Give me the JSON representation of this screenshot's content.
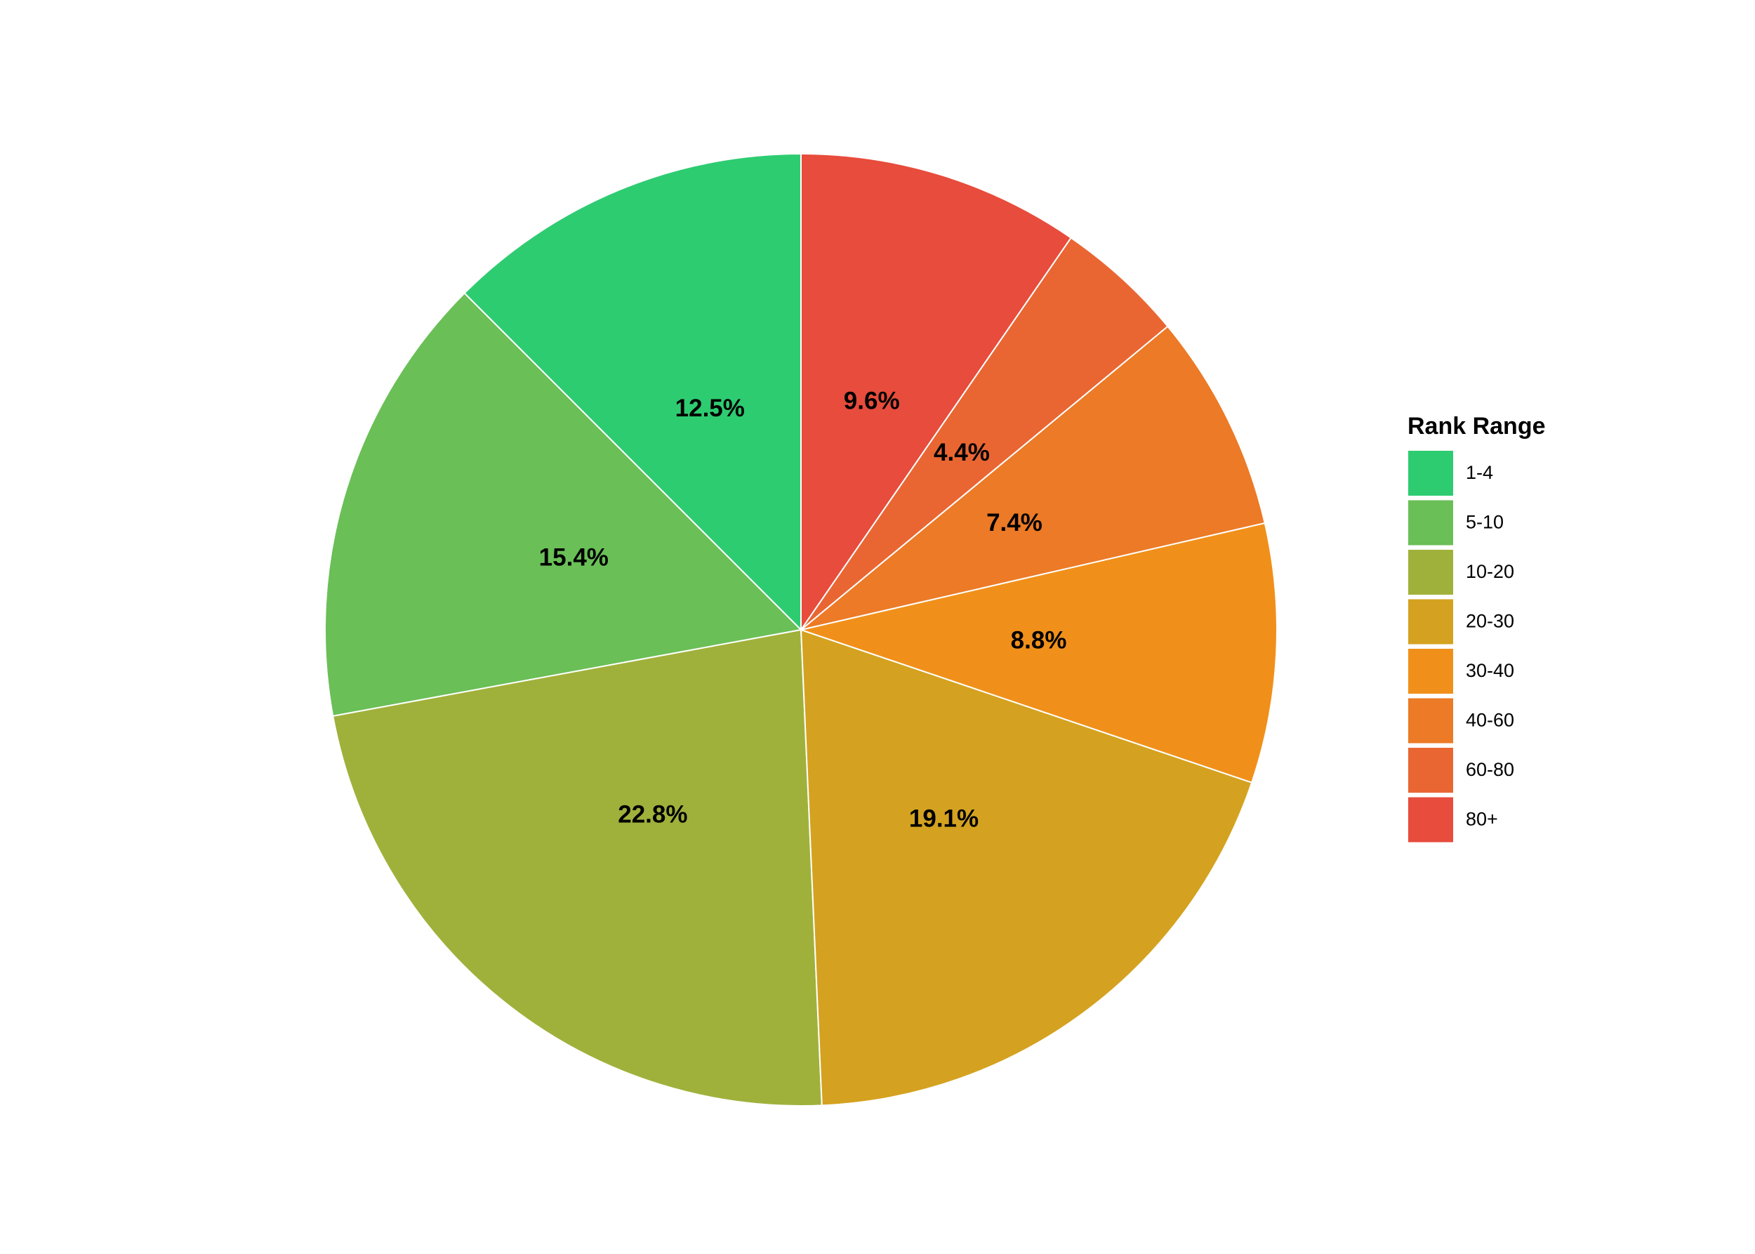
{
  "chart_data": {
    "type": "pie",
    "legend_title": "Rank Range",
    "categories": [
      "1-4",
      "5-10",
      "10-20",
      "20-30",
      "30-40",
      "40-60",
      "60-80",
      "80+"
    ],
    "values": [
      12.5,
      15.4,
      22.8,
      19.1,
      8.8,
      7.4,
      4.4,
      9.6
    ],
    "value_labels": [
      "12.5%",
      "15.4%",
      "22.8%",
      "19.1%",
      "8.8%",
      "7.4%",
      "4.4%",
      "9.6%"
    ],
    "colors": [
      "#2ecc71",
      "#6abf57",
      "#a0b13b",
      "#d4a220",
      "#f0901a",
      "#ec7a26",
      "#e96633",
      "#e74c3c"
    ],
    "legend_position": "right"
  }
}
